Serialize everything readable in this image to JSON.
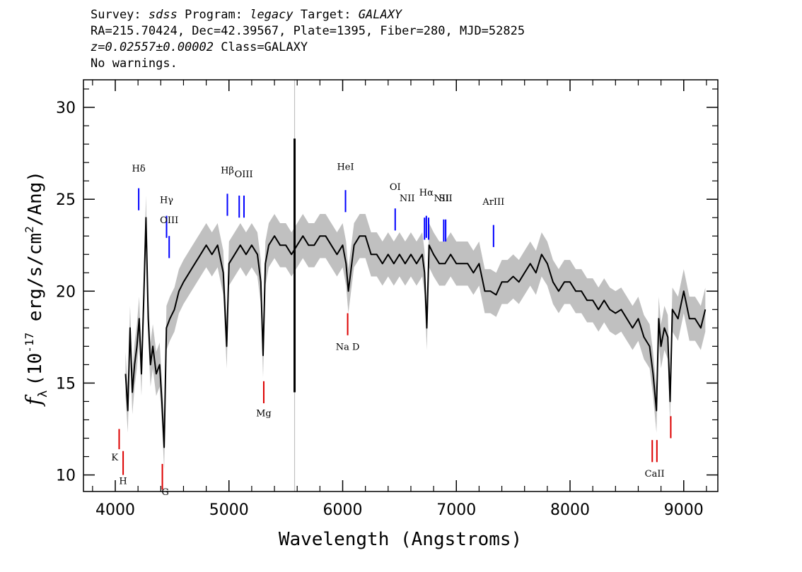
{
  "header": {
    "survey_label": "Survey: ",
    "survey": "sdss",
    "program_label": " Program: ",
    "program": "legacy",
    "target_label": " Target: ",
    "target": "GALAXY",
    "line2": "RA=215.70424, Dec=42.39567, Plate=1395, Fiber=280, MJD=52825",
    "redshift": "z=0.02557±0.00002",
    "class_text": " Class=GALAXY",
    "warnings": "No warnings."
  },
  "colors": {
    "flux": "#000000",
    "error": "#c0c0c0",
    "emission": "#0000ff",
    "absorption": "#dd0000",
    "sky": "#c0c0c0"
  },
  "chart_data": {
    "type": "line",
    "title": "",
    "xlabel": "Wavelength (Angstroms)",
    "ylabel": "f_λ (10^-17 erg/s/cm^2/Ang)",
    "ylabel_parts": {
      "f": "f",
      "sub": "λ",
      "pre": "(10",
      "exp": "-17",
      "mid": " erg/s/cm",
      "exp2": "2",
      "post": "/Ang)"
    },
    "xlim": [
      3720,
      9300
    ],
    "ylim": [
      9.1,
      31.5
    ],
    "xticks": [
      4000,
      5000,
      6000,
      7000,
      8000,
      9000
    ],
    "xtick_labels": [
      "4000",
      "5000",
      "6000",
      "7000",
      "8000",
      "9000"
    ],
    "yticks": [
      10,
      15,
      20,
      25,
      30
    ],
    "ytick_labels": [
      "10",
      "15",
      "20",
      "25",
      "30"
    ],
    "series": [
      {
        "name": "flux",
        "style": "black line",
        "x": [
          4090,
          4110,
          4130,
          4150,
          4170,
          4190,
          4210,
          4230,
          4250,
          4270,
          4290,
          4310,
          4330,
          4360,
          4390,
          4410,
          4430,
          4450,
          4480,
          4520,
          4560,
          4600,
          4650,
          4700,
          4750,
          4800,
          4850,
          4900,
          4950,
          4980,
          5000,
          5050,
          5100,
          5150,
          5200,
          5250,
          5280,
          5300,
          5320,
          5350,
          5400,
          5450,
          5500,
          5550,
          5600,
          5650,
          5700,
          5750,
          5800,
          5850,
          5900,
          5950,
          6000,
          6030,
          6050,
          6100,
          6150,
          6200,
          6250,
          6300,
          6350,
          6400,
          6450,
          6500,
          6550,
          6600,
          6650,
          6700,
          6720,
          6740,
          6760,
          6800,
          6850,
          6900,
          6950,
          7000,
          7050,
          7100,
          7150,
          7200,
          7250,
          7300,
          7350,
          7400,
          7450,
          7500,
          7550,
          7600,
          7650,
          7700,
          7750,
          7800,
          7850,
          7900,
          7950,
          8000,
          8050,
          8100,
          8150,
          8200,
          8250,
          8300,
          8350,
          8400,
          8450,
          8500,
          8550,
          8600,
          8650,
          8700,
          8730,
          8760,
          8780,
          8800,
          8830,
          8860,
          8880,
          8900,
          8950,
          9000,
          9050,
          9100,
          9150,
          9190
        ],
        "y": [
          15.5,
          13.5,
          18.0,
          14.5,
          16.0,
          17.0,
          18.5,
          15.5,
          19.5,
          24.0,
          18.5,
          16.0,
          17.0,
          15.5,
          16.0,
          14.0,
          11.5,
          18.0,
          18.5,
          19.0,
          20.0,
          20.5,
          21.0,
          21.5,
          22.0,
          22.5,
          22.0,
          22.5,
          21.0,
          17.0,
          21.5,
          22.0,
          22.5,
          22.0,
          22.5,
          22.0,
          20.5,
          16.5,
          21.5,
          22.5,
          23.0,
          22.5,
          22.5,
          22.0,
          22.5,
          23.0,
          22.5,
          22.5,
          23.0,
          23.0,
          22.5,
          22.0,
          22.5,
          21.5,
          20.0,
          22.5,
          23.0,
          23.0,
          22.0,
          22.0,
          21.5,
          22.0,
          21.5,
          22.0,
          21.5,
          22.0,
          21.5,
          22.0,
          21.0,
          18.0,
          22.5,
          22.0,
          21.5,
          21.5,
          22.0,
          21.5,
          21.5,
          21.5,
          21.0,
          21.5,
          20.0,
          20.0,
          19.8,
          20.5,
          20.5,
          20.8,
          20.5,
          21.0,
          21.5,
          21.0,
          22.0,
          21.5,
          20.5,
          20.0,
          20.5,
          20.5,
          20.0,
          20.0,
          19.5,
          19.5,
          19.0,
          19.5,
          19.0,
          18.8,
          19.0,
          18.5,
          18.0,
          18.5,
          17.5,
          17.0,
          15.5,
          13.5,
          18.5,
          17.0,
          18.0,
          17.5,
          14.0,
          19.0,
          18.5,
          20.0,
          18.5,
          18.5,
          18.0,
          19.0
        ]
      },
      {
        "name": "sky_artifact",
        "style": "black spike",
        "x": [
          5577,
          5577
        ],
        "y": [
          14.5,
          28.3
        ]
      }
    ],
    "error_band": {
      "half_width": 1.2
    },
    "emission_lines": [
      {
        "label": "Hδ",
        "wavelength": 4206,
        "y_top": 25.6,
        "y_bottom": 24.4
      },
      {
        "label": "Hγ",
        "wavelength": 4451,
        "y_top": 24.1,
        "y_bottom": 22.9
      },
      {
        "label": "OIII",
        "wavelength": 4474,
        "y_top": 23.0,
        "y_bottom": 21.8
      },
      {
        "label": "Hβ",
        "wavelength": 4986,
        "y_top": 25.3,
        "y_bottom": 24.1
      },
      {
        "label": "OIII",
        "wavelength": 5090,
        "y_top": 25.2,
        "y_bottom": 24.0
      },
      {
        "label": "OIII",
        "wavelength": 5132,
        "y_top": 25.2,
        "y_bottom": 24.0
      },
      {
        "label": "HeI",
        "wavelength": 6025,
        "y_top": 25.5,
        "y_bottom": 24.3
      },
      {
        "label": "OI",
        "wavelength": 6462,
        "y_top": 24.5,
        "y_bottom": 23.3
      },
      {
        "label": "NII",
        "wavelength": 6720,
        "y_top": 24.0,
        "y_bottom": 22.8
      },
      {
        "label": "Hα",
        "wavelength": 6736,
        "y_top": 24.1,
        "y_bottom": 22.9
      },
      {
        "label": "NII",
        "wavelength": 6756,
        "y_top": 24.0,
        "y_bottom": 22.8
      },
      {
        "label": "SII",
        "wavelength": 6889,
        "y_top": 23.9,
        "y_bottom": 22.7
      },
      {
        "label": "SII",
        "wavelength": 6906,
        "y_top": 23.9,
        "y_bottom": 22.7
      },
      {
        "label": "ArIII",
        "wavelength": 7327,
        "y_top": 23.6,
        "y_bottom": 22.4
      }
    ],
    "absorption_lines": [
      {
        "label": "K",
        "wavelength": 4034,
        "y_top": 12.5,
        "y_bottom": 11.4
      },
      {
        "label": "H",
        "wavelength": 4069,
        "y_top": 11.3,
        "y_bottom": 10.0
      },
      {
        "label": "G",
        "wavelength": 4414,
        "y_top": 10.6,
        "y_bottom": 9.2
      },
      {
        "label": "Mg",
        "wavelength": 5306,
        "y_top": 15.1,
        "y_bottom": 13.9
      },
      {
        "label": "Na D",
        "wavelength": 6044,
        "y_top": 18.8,
        "y_bottom": 17.6
      },
      {
        "label": "CaII",
        "wavelength": 8723,
        "y_top": 11.9,
        "y_bottom": 10.7
      },
      {
        "label": "CaII",
        "wavelength": 8764,
        "y_top": 11.9,
        "y_bottom": 10.7
      },
      {
        "label": "CaII",
        "wavelength": 8886,
        "y_top": 13.2,
        "y_bottom": 12.0
      }
    ],
    "line_labels": [
      {
        "text": "Hδ",
        "x": 4206,
        "y": 26.5
      },
      {
        "text": "Hγ",
        "x": 4451,
        "y": 24.8
      },
      {
        "text": "OIII",
        "x": 4474,
        "y": 23.7
      },
      {
        "text": "Hβ",
        "x": 4986,
        "y": 26.4
      },
      {
        "text": "OIII",
        "x": 5130,
        "y": 26.2
      },
      {
        "text": "HeI",
        "x": 6025,
        "y": 26.6
      },
      {
        "text": "OI",
        "x": 6462,
        "y": 25.5
      },
      {
        "text": "NII",
        "x": 6567,
        "y": 24.9
      },
      {
        "text": "Hα",
        "x": 6736,
        "y": 25.2
      },
      {
        "text": "NII",
        "x": 6870,
        "y": 24.9
      },
      {
        "text": "SII",
        "x": 6906,
        "y": 24.9
      },
      {
        "text": "ArIII",
        "x": 7327,
        "y": 24.7
      },
      {
        "text": "K",
        "x": 3995,
        "y": 10.8
      },
      {
        "text": "H",
        "x": 4069,
        "y": 9.5
      },
      {
        "text": "G",
        "x": 4440,
        "y": 8.9
      },
      {
        "text": "Mg",
        "x": 5306,
        "y": 13.2
      },
      {
        "text": "Na  D",
        "x": 6044,
        "y": 16.8
      },
      {
        "text": "CaII",
        "x": 8744,
        "y": 9.9
      }
    ]
  }
}
